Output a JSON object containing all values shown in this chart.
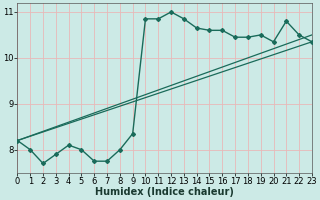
{
  "xlabel": "Humidex (Indice chaleur)",
  "bg_color": "#cceae6",
  "grid_color": "#e8b8b8",
  "line_color": "#1a6b5a",
  "x_data": [
    0,
    1,
    2,
    3,
    4,
    5,
    6,
    7,
    8,
    9,
    10,
    11,
    12,
    13,
    14,
    15,
    16,
    17,
    18,
    19,
    20,
    21,
    22,
    23
  ],
  "y_main": [
    8.2,
    8.0,
    7.7,
    7.9,
    8.1,
    8.0,
    7.75,
    7.75,
    8.0,
    8.35,
    10.85,
    10.85,
    11.0,
    10.85,
    10.65,
    10.6,
    10.6,
    10.45,
    10.45,
    10.5,
    10.35,
    10.8,
    10.5,
    10.35
  ],
  "y_line1_start": 8.2,
  "y_line1_end": 10.35,
  "y_line2_start": 8.2,
  "y_line2_end": 10.5,
  "xlim": [
    0,
    23
  ],
  "ylim": [
    7.5,
    11.2
  ],
  "yticks": [
    8,
    9,
    10,
    11
  ],
  "xticks": [
    0,
    1,
    2,
    3,
    4,
    5,
    6,
    7,
    8,
    9,
    10,
    11,
    12,
    13,
    14,
    15,
    16,
    17,
    18,
    19,
    20,
    21,
    22,
    23
  ],
  "xlabel_fontsize": 7,
  "tick_fontsize": 6
}
